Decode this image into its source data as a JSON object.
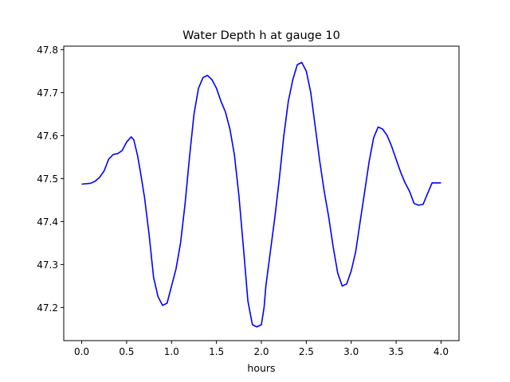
{
  "chart_data": {
    "type": "line",
    "title": "Water Depth h at gauge 10",
    "xlabel": "hours",
    "ylabel": "",
    "xlim": [
      -0.2,
      4.2
    ],
    "ylim": [
      47.123,
      47.808
    ],
    "grid": false,
    "x_ticks": [
      0.0,
      0.5,
      1.0,
      1.5,
      2.0,
      2.5,
      3.0,
      3.5,
      4.0
    ],
    "x_tick_labels": [
      "0.0",
      "0.5",
      "1.0",
      "1.5",
      "2.0",
      "2.5",
      "3.0",
      "3.5",
      "4.0"
    ],
    "y_ticks": [
      47.2,
      47.3,
      47.4,
      47.5,
      47.6,
      47.7,
      47.8
    ],
    "y_tick_labels": [
      "47.2",
      "47.3",
      "47.4",
      "47.5",
      "47.6",
      "47.7",
      "47.8"
    ],
    "series": [
      {
        "color": "#0000ff",
        "x": [
          0.0,
          0.1,
          0.15,
          0.2,
          0.25,
          0.3,
          0.35,
          0.4,
          0.45,
          0.5,
          0.55,
          0.58,
          0.62,
          0.65,
          0.7,
          0.75,
          0.8,
          0.85,
          0.9,
          0.95,
          1.0,
          1.05,
          1.1,
          1.15,
          1.2,
          1.25,
          1.3,
          1.35,
          1.4,
          1.45,
          1.5,
          1.55,
          1.6,
          1.65,
          1.7,
          1.75,
          1.8,
          1.85,
          1.9,
          1.95,
          2.0,
          2.03,
          2.05,
          2.1,
          2.15,
          2.2,
          2.25,
          2.3,
          2.35,
          2.4,
          2.45,
          2.5,
          2.55,
          2.6,
          2.65,
          2.7,
          2.75,
          2.8,
          2.85,
          2.9,
          2.95,
          3.0,
          3.05,
          3.1,
          3.15,
          3.2,
          3.25,
          3.3,
          3.35,
          3.4,
          3.45,
          3.5,
          3.55,
          3.6,
          3.65,
          3.7,
          3.75,
          3.8,
          3.85,
          3.9,
          3.95,
          4.0
        ],
        "y": [
          47.487,
          47.489,
          47.494,
          47.503,
          47.518,
          47.545,
          47.556,
          47.558,
          47.565,
          47.585,
          47.597,
          47.59,
          47.555,
          47.52,
          47.455,
          47.37,
          47.27,
          47.225,
          47.205,
          47.21,
          47.25,
          47.29,
          47.35,
          47.44,
          47.55,
          47.65,
          47.71,
          47.735,
          47.74,
          47.73,
          47.71,
          47.68,
          47.655,
          47.615,
          47.555,
          47.46,
          47.34,
          47.215,
          47.16,
          47.155,
          47.16,
          47.2,
          47.25,
          47.33,
          47.41,
          47.5,
          47.6,
          47.68,
          47.73,
          47.765,
          47.77,
          47.75,
          47.7,
          47.62,
          47.54,
          47.47,
          47.41,
          47.34,
          47.28,
          47.25,
          47.255,
          47.285,
          47.33,
          47.4,
          47.47,
          47.54,
          47.595,
          47.62,
          47.615,
          47.6,
          47.575,
          47.545,
          47.515,
          47.49,
          47.47,
          47.442,
          47.438,
          47.44,
          47.465,
          47.49,
          47.49,
          47.49
        ]
      }
    ]
  }
}
